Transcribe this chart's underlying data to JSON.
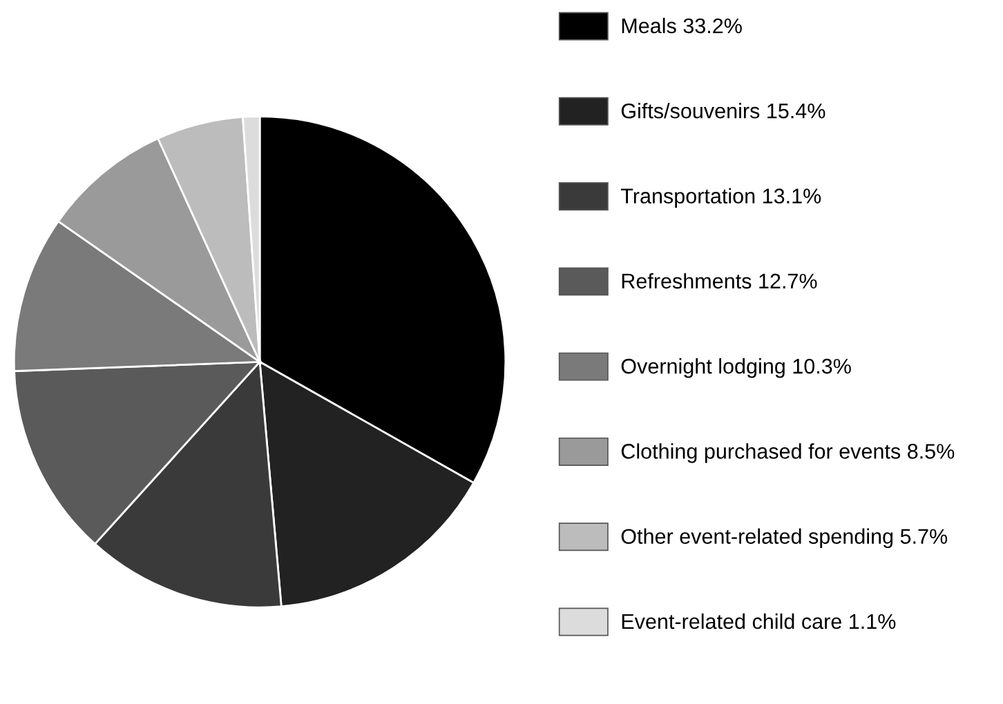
{
  "chart_data": {
    "type": "pie",
    "categories": [
      "Meals 33.2%",
      "Gifts/souvenirs 15.4%",
      "Transportation 13.1%",
      "Refreshments 12.7%",
      "Overnight lodging 10.3%",
      "Clothing purchased for events 8.5%",
      "Other event-related spending 5.7%",
      "Event-related child care 1.1%"
    ],
    "values": [
      33.2,
      15.4,
      13.1,
      12.7,
      10.3,
      8.5,
      5.7,
      1.1
    ],
    "colors": [
      "#000000",
      "#222222",
      "#3a3a3a",
      "#5a5a5a",
      "#7a7a7a",
      "#9a9a9a",
      "#bcbcbc",
      "#dcdcdc"
    ],
    "legend": "right"
  }
}
